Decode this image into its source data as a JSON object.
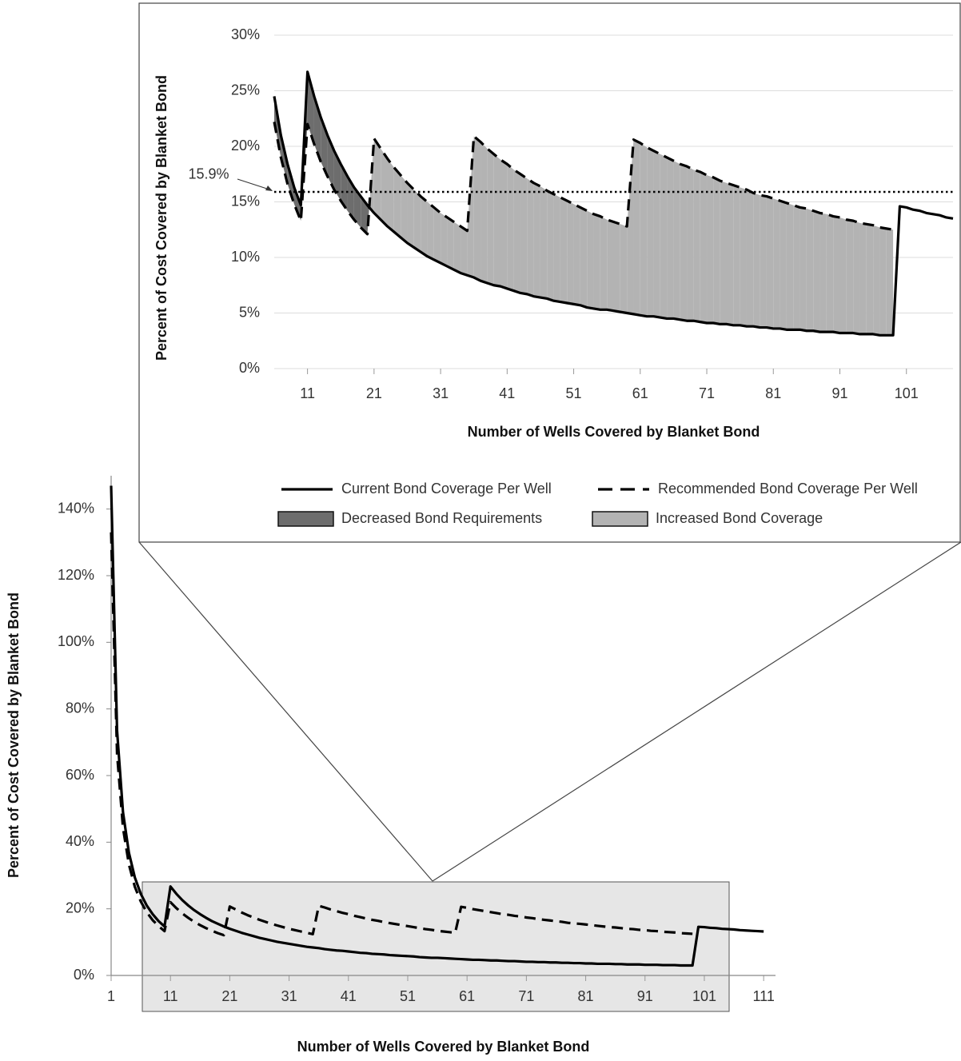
{
  "chart_data": [
    {
      "type": "line",
      "x": [
        6,
        7,
        8,
        9,
        10,
        11,
        12,
        13,
        14,
        15,
        16,
        17,
        18,
        19,
        20,
        21,
        22,
        23,
        24,
        25,
        26,
        27,
        28,
        29,
        30,
        31,
        32,
        33,
        34,
        35,
        36,
        37,
        38,
        39,
        40,
        41,
        42,
        43,
        44,
        45,
        46,
        47,
        48,
        49,
        50,
        51,
        52,
        53,
        54,
        55,
        56,
        57,
        58,
        59,
        60,
        61,
        62,
        63,
        64,
        65,
        66,
        67,
        68,
        69,
        70,
        71,
        72,
        73,
        74,
        75,
        76,
        77,
        78,
        79,
        80,
        81,
        82,
        83,
        84,
        85,
        86,
        87,
        88,
        89,
        90,
        91,
        92,
        93,
        94,
        95,
        96,
        97,
        98,
        99,
        100,
        101,
        102,
        103,
        104,
        105,
        106,
        107,
        108
      ],
      "series": [
        {
          "name": "Current Bond Coverage Per Well",
          "color": "#000000",
          "line_style": "solid",
          "values": [
            24.5,
            21.0,
            18.4,
            16.3,
            14.7,
            26.7,
            24.5,
            22.6,
            21.0,
            19.6,
            18.4,
            17.3,
            16.3,
            15.5,
            14.7,
            14.0,
            13.4,
            12.8,
            12.3,
            11.8,
            11.3,
            10.9,
            10.5,
            10.1,
            9.8,
            9.5,
            9.2,
            8.9,
            8.6,
            8.4,
            8.2,
            7.9,
            7.7,
            7.5,
            7.4,
            7.2,
            7.0,
            6.8,
            6.7,
            6.5,
            6.4,
            6.3,
            6.1,
            6.0,
            5.9,
            5.8,
            5.7,
            5.5,
            5.4,
            5.3,
            5.3,
            5.2,
            5.1,
            5.0,
            4.9,
            4.8,
            4.7,
            4.7,
            4.6,
            4.5,
            4.5,
            4.4,
            4.3,
            4.3,
            4.2,
            4.1,
            4.1,
            4.0,
            4.0,
            3.9,
            3.9,
            3.8,
            3.8,
            3.7,
            3.7,
            3.6,
            3.6,
            3.5,
            3.5,
            3.5,
            3.4,
            3.4,
            3.3,
            3.3,
            3.3,
            3.2,
            3.2,
            3.2,
            3.1,
            3.1,
            3.1,
            3.0,
            3.0,
            3.0,
            14.6,
            14.5,
            14.3,
            14.2,
            14.0,
            13.9,
            13.8,
            13.6,
            13.5
          ]
        },
        {
          "name": "Recommended Bond Coverage Per Well",
          "color": "#000000",
          "line_style": "dashed",
          "values": [
            22.2,
            19.0,
            16.6,
            14.8,
            13.3,
            22.0,
            20.2,
            18.6,
            17.3,
            16.1,
            15.1,
            14.2,
            13.4,
            12.7,
            12.1,
            20.7,
            19.8,
            18.9,
            18.1,
            17.4,
            16.7,
            16.1,
            15.5,
            15.0,
            14.5,
            14.0,
            13.6,
            13.2,
            12.8,
            12.4,
            20.9,
            20.4,
            19.8,
            19.3,
            18.8,
            18.4,
            17.9,
            17.5,
            17.1,
            16.7,
            16.4,
            16.0,
            15.7,
            15.4,
            15.1,
            14.8,
            14.5,
            14.2,
            13.9,
            13.7,
            13.4,
            13.2,
            13.0,
            12.8,
            20.6,
            20.3,
            19.9,
            19.6,
            19.3,
            19.0,
            18.7,
            18.4,
            18.2,
            17.9,
            17.7,
            17.4,
            17.2,
            16.9,
            16.7,
            16.5,
            16.3,
            16.1,
            15.8,
            15.6,
            15.5,
            15.3,
            15.1,
            14.9,
            14.7,
            14.5,
            14.4,
            14.2,
            14.0,
            13.9,
            13.7,
            13.6,
            13.4,
            13.3,
            13.1,
            13.0,
            12.9,
            12.7,
            12.6,
            12.5,
            null,
            null,
            null,
            null,
            null,
            null,
            null,
            null,
            null
          ]
        }
      ],
      "fills": [
        {
          "name": "Decreased Bond Requirements",
          "color": "#6d6d6d"
        },
        {
          "name": "Increased Bond Coverage",
          "color": "#b3b3b3"
        }
      ],
      "reference_line": {
        "value": 15.9,
        "label": "15.9%"
      },
      "x_label": "Number of Wells Covered by Blanket Bond",
      "y_label": "Percent of Cost Covered by Blanket Bond",
      "xlim": [
        6,
        108
      ],
      "ylim": [
        0,
        30
      ],
      "xticks": [
        11,
        21,
        31,
        41,
        51,
        61,
        71,
        81,
        91,
        101
      ],
      "yticks": [
        {
          "value": 0,
          "label": "0%"
        },
        {
          "value": 5,
          "label": "5%"
        },
        {
          "value": 10,
          "label": "10%"
        },
        {
          "value": 15,
          "label": "15%"
        },
        {
          "value": 20,
          "label": "20%"
        },
        {
          "value": 25,
          "label": "25%"
        },
        {
          "value": 30,
          "label": "30%"
        }
      ],
      "grid": true,
      "legend": "bottom"
    },
    {
      "type": "line",
      "x": [
        1,
        2,
        3,
        4,
        5,
        6,
        7,
        8,
        9,
        10,
        11,
        12,
        13,
        14,
        15,
        16,
        17,
        18,
        19,
        20,
        21,
        22,
        23,
        24,
        25,
        26,
        27,
        28,
        29,
        30,
        31,
        32,
        33,
        34,
        35,
        36,
        37,
        38,
        39,
        40,
        41,
        42,
        43,
        44,
        45,
        46,
        47,
        48,
        49,
        50,
        51,
        52,
        53,
        54,
        55,
        56,
        57,
        58,
        59,
        60,
        61,
        62,
        63,
        64,
        65,
        66,
        67,
        68,
        69,
        70,
        71,
        72,
        73,
        74,
        75,
        76,
        77,
        78,
        79,
        80,
        81,
        82,
        83,
        84,
        85,
        86,
        87,
        88,
        89,
        90,
        91,
        92,
        93,
        94,
        95,
        96,
        97,
        98,
        99,
        100,
        101,
        102,
        103,
        104,
        105,
        106,
        107,
        108,
        109,
        110,
        111
      ],
      "series": [
        {
          "color": "#000000",
          "line_style": "solid",
          "values": [
            147.0,
            73.5,
            49.0,
            36.8,
            29.4,
            24.5,
            21.0,
            18.4,
            16.3,
            14.7,
            26.7,
            24.5,
            22.6,
            21.0,
            19.6,
            18.4,
            17.3,
            16.3,
            15.5,
            14.7,
            14.0,
            13.4,
            12.8,
            12.3,
            11.8,
            11.3,
            10.9,
            10.5,
            10.1,
            9.8,
            9.5,
            9.2,
            8.9,
            8.6,
            8.4,
            8.2,
            7.9,
            7.7,
            7.5,
            7.4,
            7.2,
            7.0,
            6.8,
            6.7,
            6.5,
            6.4,
            6.3,
            6.1,
            6.0,
            5.9,
            5.8,
            5.7,
            5.5,
            5.4,
            5.3,
            5.3,
            5.2,
            5.1,
            5.0,
            4.9,
            4.8,
            4.7,
            4.7,
            4.6,
            4.5,
            4.5,
            4.4,
            4.3,
            4.3,
            4.2,
            4.1,
            4.1,
            4.0,
            4.0,
            3.9,
            3.9,
            3.8,
            3.8,
            3.7,
            3.7,
            3.6,
            3.6,
            3.5,
            3.5,
            3.5,
            3.4,
            3.4,
            3.3,
            3.3,
            3.3,
            3.2,
            3.2,
            3.2,
            3.1,
            3.1,
            3.1,
            3.0,
            3.0,
            3.0,
            14.6,
            14.5,
            14.3,
            14.2,
            14.0,
            13.9,
            13.8,
            13.6,
            13.5,
            13.4,
            13.3,
            13.2
          ]
        },
        {
          "color": "#000000",
          "line_style": "dashed",
          "values": [
            133.0,
            66.5,
            44.3,
            33.3,
            26.6,
            22.2,
            19.0,
            16.6,
            14.8,
            13.3,
            22.0,
            20.2,
            18.6,
            17.3,
            16.1,
            15.1,
            14.2,
            13.4,
            12.7,
            12.1,
            20.7,
            19.8,
            18.9,
            18.1,
            17.4,
            16.7,
            16.1,
            15.5,
            15.0,
            14.5,
            14.0,
            13.6,
            13.2,
            12.8,
            12.4,
            20.9,
            20.4,
            19.8,
            19.3,
            18.8,
            18.4,
            17.9,
            17.5,
            17.1,
            16.7,
            16.4,
            16.0,
            15.7,
            15.4,
            15.1,
            14.8,
            14.5,
            14.2,
            13.9,
            13.7,
            13.4,
            13.2,
            13.0,
            12.8,
            20.6,
            20.3,
            19.9,
            19.6,
            19.3,
            19.0,
            18.7,
            18.4,
            18.2,
            17.9,
            17.7,
            17.4,
            17.2,
            16.9,
            16.7,
            16.5,
            16.3,
            16.1,
            15.8,
            15.6,
            15.5,
            15.3,
            15.1,
            14.9,
            14.7,
            14.5,
            14.4,
            14.2,
            14.0,
            13.9,
            13.7,
            13.6,
            13.4,
            13.3,
            13.1,
            13.0,
            12.9,
            12.7,
            12.6,
            12.5,
            null,
            null,
            null,
            null,
            null,
            null,
            null,
            null,
            null,
            null,
            null,
            null
          ]
        }
      ],
      "x_label": "Number of Wells Covered by Blanket Bond",
      "y_label": "Percent of Cost Covered by Blanket Bond",
      "xlim": [
        1,
        113
      ],
      "ylim": [
        0,
        150
      ],
      "xticks": [
        1,
        11,
        21,
        31,
        41,
        51,
        61,
        71,
        81,
        91,
        101,
        111
      ],
      "yticks": [
        {
          "value": 0,
          "label": "0%"
        },
        {
          "value": 20,
          "label": "20%"
        },
        {
          "value": 40,
          "label": "40%"
        },
        {
          "value": 60,
          "label": "60%"
        },
        {
          "value": 80,
          "label": "80%"
        },
        {
          "value": 100,
          "label": "100%"
        },
        {
          "value": 120,
          "label": "120%"
        },
        {
          "value": 140,
          "label": "140%"
        }
      ],
      "grid": false
    }
  ]
}
